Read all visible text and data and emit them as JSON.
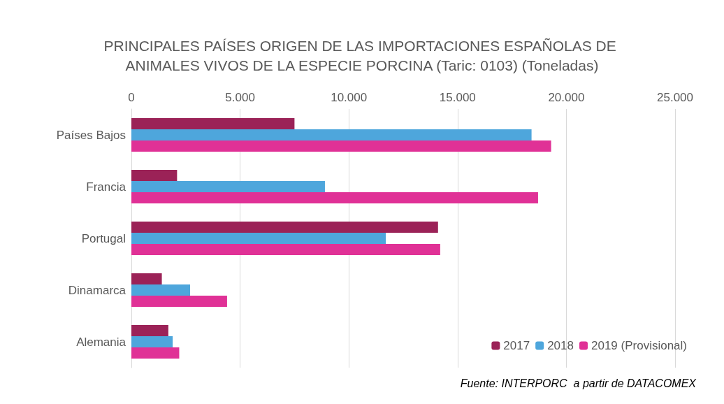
{
  "chart_data": {
    "type": "bar",
    "orientation": "horizontal",
    "title": "PRINCIPALES PAÍSES ORIGEN DE LAS IMPORTACIONES ESPAÑOLAS DE ANIMALES VIVOS DE LA ESPECIE PORCINA (Taric: 0103) (Toneladas)",
    "categories": [
      "Países Bajos",
      "Francia",
      "Portugal",
      "Dinamarca",
      "Alemania"
    ],
    "series": [
      {
        "name": "2017",
        "color": "#9b2257",
        "values": [
          7500,
          2100,
          14100,
          1400,
          1700
        ]
      },
      {
        "name": "2018",
        "color": "#4ea6dc",
        "values": [
          18400,
          8900,
          11700,
          2700,
          1900
        ]
      },
      {
        "name": "2019 (Provisional)",
        "color": "#e03196",
        "values": [
          19300,
          18700,
          14200,
          4400,
          2200
        ]
      }
    ],
    "xlim": [
      0,
      25000
    ],
    "xticks": [
      0,
      {
        "value": 5000,
        "label": "5.000"
      },
      {
        "value": 10000,
        "label": "10.000"
      },
      {
        "value": 15000,
        "label": "15.000"
      },
      {
        "value": 20000,
        "label": "20.000"
      },
      {
        "value": 25000,
        "label": "25.000"
      }
    ],
    "grid": "x",
    "legend": "bottom right",
    "annotations": [
      "Fuente: INTERPORC  a partir de DATACOMEX"
    ]
  }
}
